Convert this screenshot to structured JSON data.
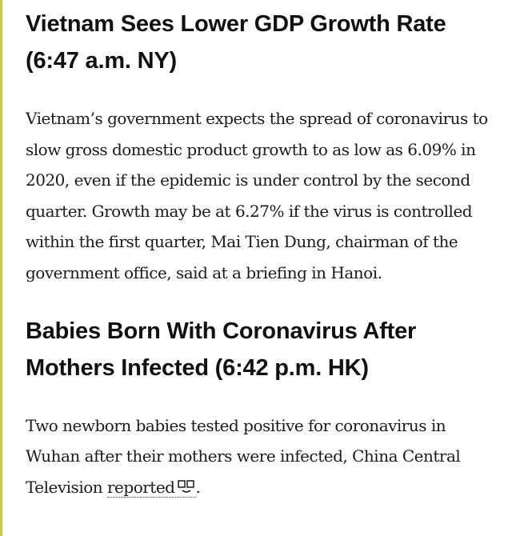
{
  "article": {
    "sections": [
      {
        "headline": "Vietnam Sees Lower GDP Growth Rate (6:47 a.m. NY)",
        "body": "Vietnam’s government expects the spread of coronavirus to slow gross domestic product growth to as low as 6.09% in 2020, even if the epidemic is under control by the second quarter. Growth may be at 6.27% if the virus is controlled within the first quarter, Mai Tien Dung, chairman of the government office, said at a briefing in Hanoi."
      },
      {
        "headline": "Babies Born With Coronavirus After Mothers Infected (6:42 p.m. HK)",
        "body_before_link": "Two newborn babies tested positive for coronavirus in Wuhan after their mothers were infected, China Central Television ",
        "link_text": "reported",
        "link_icon": "video-icon",
        "body_after_link": "."
      }
    ]
  },
  "colors": {
    "left_rule": "#c9c94a",
    "text": "#1a1a1a",
    "headline": "#111111"
  }
}
